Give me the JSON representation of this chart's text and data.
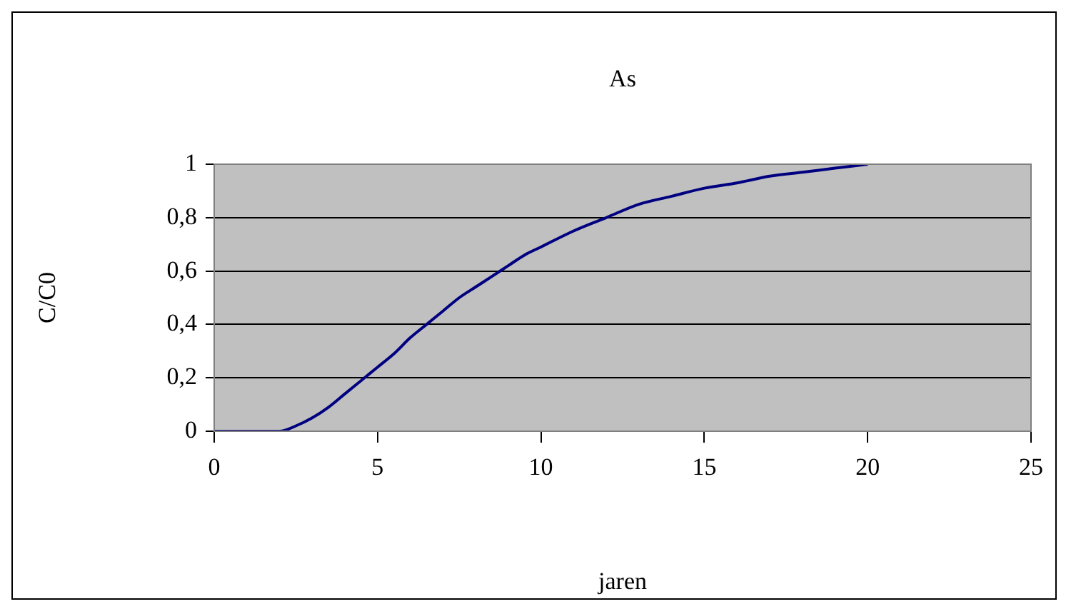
{
  "chart_data": {
    "type": "line",
    "title": "As",
    "xlabel": "jaren",
    "ylabel": "C/C0",
    "x": [
      0,
      2,
      2.5,
      3,
      3.5,
      4,
      4.5,
      5,
      5.5,
      6,
      6.5,
      7,
      7.5,
      8,
      8.5,
      9,
      9.5,
      10,
      11,
      12,
      13,
      14,
      15,
      16,
      17,
      18,
      19,
      20
    ],
    "series": [
      {
        "color": "#000080",
        "values": [
          0,
          0,
          0.02,
          0.05,
          0.09,
          0.14,
          0.19,
          0.24,
          0.29,
          0.35,
          0.4,
          0.45,
          0.5,
          0.54,
          0.58,
          0.62,
          0.66,
          0.69,
          0.75,
          0.8,
          0.85,
          0.88,
          0.91,
          0.93,
          0.955,
          0.97,
          0.985,
          1
        ]
      }
    ],
    "xlim": [
      0,
      25
    ],
    "xticks": [
      0,
      5,
      10,
      15,
      20,
      25
    ],
    "ylim": [
      0,
      1
    ],
    "yticks": [
      0,
      {
        "value": 0.2,
        "label": "0,2"
      },
      {
        "value": 0.4,
        "label": "0,4"
      },
      {
        "value": 0.6,
        "label": "0,6"
      },
      {
        "value": 0.8,
        "label": "0,8"
      },
      1
    ],
    "grid": "y",
    "legend": false,
    "marker": "none",
    "line_style": "solid"
  }
}
